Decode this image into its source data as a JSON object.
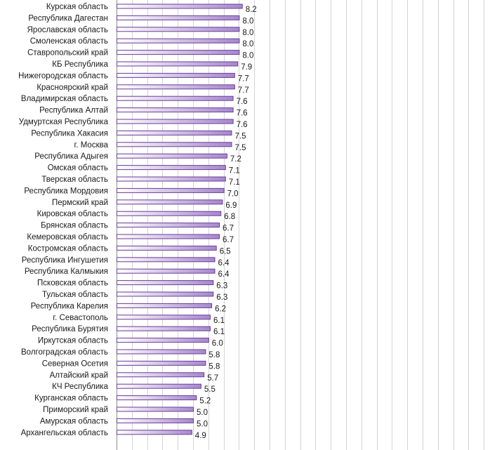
{
  "chart_data": {
    "type": "bar",
    "orientation": "horizontal",
    "title": "",
    "xlabel": "",
    "ylabel": "",
    "xlim": [
      0,
      24.5
    ],
    "grid": true,
    "colors": {
      "bar_start": "#ffffff",
      "bar_end": "#a788cd",
      "bar_border": "#6a3d9a",
      "grid": "#d4d4d4"
    },
    "categories": [
      "Курская область",
      "Республика Дагестан",
      "Ярославская область",
      "Смоленская область",
      "Ставропольский край",
      "КБ Республика",
      "Нижегородская область",
      "Красноярский край",
      "Владимирская область",
      "Республика Алтай",
      "Удмуртская Республика",
      "Республика Хакасия",
      "г. Москва",
      "Республика Адыгея",
      "Омская область",
      "Тверская область",
      "Республика Мордовия",
      "Пермский край",
      "Кировская область",
      "Брянская область",
      "Кемеровская область",
      "Костромская область",
      "Республика Ингушетия",
      "Республика Калмыкия",
      "Псковская область",
      "Тульская область",
      "Республика Карелия",
      "г. Севастополь",
      "Республика Бурятия",
      "Иркутская область",
      "Волгоградская область",
      "Северная Осетия",
      "Алтайский край",
      "КЧ Республика",
      "Курганская область",
      "Приморский край",
      "Амурская область",
      "Архангельская область"
    ],
    "values": [
      8.2,
      8.0,
      8.0,
      8.0,
      8.0,
      7.9,
      7.7,
      7.7,
      7.6,
      7.6,
      7.6,
      7.5,
      7.5,
      7.2,
      7.1,
      7.1,
      7.0,
      6.9,
      6.8,
      6.7,
      6.7,
      6.5,
      6.4,
      6.4,
      6.3,
      6.3,
      6.2,
      6.1,
      6.1,
      6.0,
      5.8,
      5.8,
      5.7,
      5.5,
      5.2,
      5.0,
      5.0,
      4.9
    ],
    "value_labels": [
      "8.2",
      "8.0",
      "8.0",
      "8.0",
      "8.0",
      "7.9",
      "7.7",
      "7.7",
      "7.6",
      "7.6",
      "7.6",
      "7.5",
      "7.5",
      "7.2",
      "7.1",
      "7.1",
      "7.0",
      "6.9",
      "6.8",
      "6.7",
      "6.7",
      "6.5",
      "6.4",
      "6.4",
      "6.3",
      "6.3",
      "6.2",
      "6.1",
      "6.1",
      "6.0",
      "5.8",
      "5.8",
      "5.7",
      "5.5",
      "5.2",
      "5.0",
      "5.0",
      "4.9"
    ]
  }
}
